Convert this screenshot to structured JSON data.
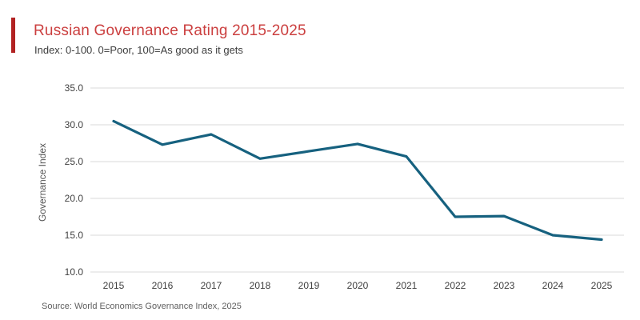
{
  "header": {
    "title": "Russian Governance Rating 2015-2025",
    "subtitle": "Index: 0-100. 0=Poor, 100=As good as it gets",
    "accent_color": "#b22222",
    "title_color": "#cb3f3f"
  },
  "chart_data": {
    "type": "line",
    "title": "Russian Governance Rating 2015-2025",
    "subtitle": "Index: 0-100. 0=Poor, 100=As good as it gets",
    "xlabel": "",
    "ylabel": "Governance Index",
    "x": [
      2015,
      2016,
      2017,
      2018,
      2019,
      2020,
      2021,
      2022,
      2023,
      2024,
      2025
    ],
    "series": [
      {
        "name": "Governance Index",
        "values": [
          30.5,
          27.3,
          28.7,
          25.4,
          26.4,
          27.4,
          25.7,
          17.5,
          17.6,
          15.0,
          14.4
        ]
      }
    ],
    "ylim": [
      10,
      35
    ],
    "yticks": [
      35,
      30,
      25,
      20,
      15,
      10
    ],
    "ytick_labels": [
      "35.0",
      "30.0",
      "25.0",
      "20.0",
      "15.0",
      "10.0"
    ],
    "grid": "horizontal",
    "legend": "none",
    "line_color": "#16617f",
    "grid_color": "#d8d8d8",
    "tick_color": "#404040",
    "axis_label_color": "#555555"
  },
  "footer": {
    "source": "Source: World Economics Governance Index, 2025"
  }
}
